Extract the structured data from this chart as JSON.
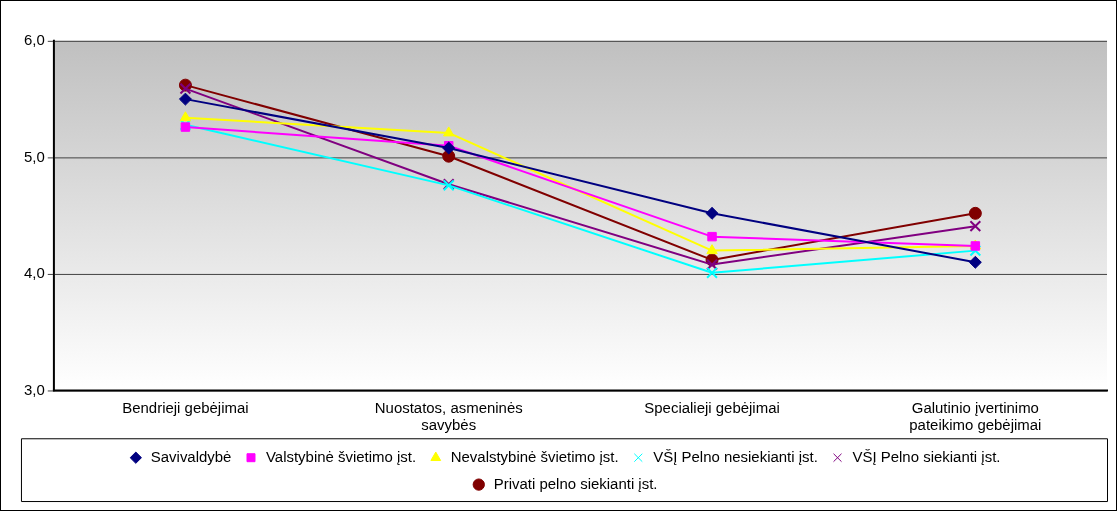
{
  "chart_data": {
    "type": "line",
    "categories": [
      "Bendrieji gebėjimai",
      "Nuostatos, asmeninės savybės",
      "Specialieji gebėjimai",
      "Galutinio įvertinimo pateikimo gebėjimai"
    ],
    "series": [
      {
        "name": "Savivaldybė",
        "color": "#000080",
        "marker": "diamond",
        "values": [
          5.5,
          5.08,
          4.52,
          4.1
        ]
      },
      {
        "name": "Valstybinė švietimo įst.",
        "color": "#ff00ff",
        "marker": "square",
        "values": [
          5.26,
          5.1,
          4.32,
          4.24
        ]
      },
      {
        "name": "Nevalstybinė švietimo įst.",
        "color": "#ffff00",
        "marker": "triangle",
        "values": [
          5.34,
          5.21,
          4.2,
          4.24
        ]
      },
      {
        "name": "VŠĮ Pelno nesiekianti įst.",
        "color": "#00ffff",
        "marker": "cross",
        "values": [
          5.28,
          4.76,
          4.01,
          4.2
        ]
      },
      {
        "name": "VŠĮ Pelno siekianti įst.",
        "color": "#800080",
        "marker": "cross",
        "values": [
          5.59,
          4.77,
          4.08,
          4.41
        ]
      },
      {
        "name": "Privati pelno siekianti įst.",
        "color": "#800000",
        "marker": "circle",
        "values": [
          5.62,
          5.01,
          4.12,
          4.52
        ]
      }
    ],
    "ylim": [
      3,
      6
    ],
    "yticks": [
      {
        "value": 3,
        "label": "3,0"
      },
      {
        "value": 4,
        "label": "4,0"
      },
      {
        "value": 5,
        "label": "5,0"
      },
      {
        "value": 6,
        "label": "6,0"
      }
    ],
    "grid": "y",
    "legend": "bottom",
    "line_style": "solid"
  }
}
